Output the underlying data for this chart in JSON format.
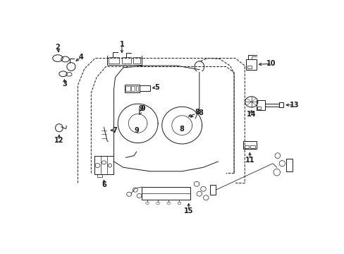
{
  "bg_color": "#ffffff",
  "line_color": "#1a1a1a",
  "lw": 0.7,
  "fig_w": 4.89,
  "fig_h": 3.6,
  "dpi": 100,
  "door_outer": {
    "x": [
      0.13,
      0.13,
      0.155,
      0.19,
      0.195,
      0.72,
      0.745,
      0.755,
      0.755,
      0.72,
      0.13
    ],
    "y": [
      0.22,
      0.72,
      0.8,
      0.855,
      0.86,
      0.86,
      0.83,
      0.81,
      0.22,
      0.22,
      0.22
    ]
  },
  "door_inner": {
    "x": [
      0.175,
      0.175,
      0.2,
      0.23,
      0.235,
      0.685,
      0.71,
      0.715,
      0.715,
      0.175
    ],
    "y": [
      0.27,
      0.68,
      0.76,
      0.815,
      0.818,
      0.818,
      0.79,
      0.77,
      0.27,
      0.27
    ]
  },
  "label_fontsize": 7,
  "arrowhead_size": 6
}
